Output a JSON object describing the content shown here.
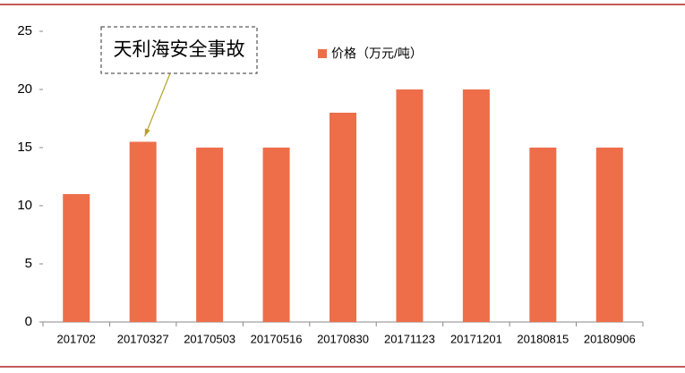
{
  "chart_data": {
    "type": "bar",
    "categories": [
      "201702",
      "20170327",
      "20170503",
      "20170516",
      "20170830",
      "20171123",
      "20171201",
      "20180815",
      "20180906"
    ],
    "series": [
      {
        "name": "价格（万元/吨）",
        "color": "#ee6e4a",
        "values": [
          11,
          15.5,
          15,
          15,
          18,
          20,
          20,
          15,
          15
        ]
      }
    ],
    "ylim": [
      0,
      25
    ],
    "yticks": [
      0,
      5,
      10,
      15,
      20,
      25
    ],
    "annotation": "天利海安全事故"
  }
}
